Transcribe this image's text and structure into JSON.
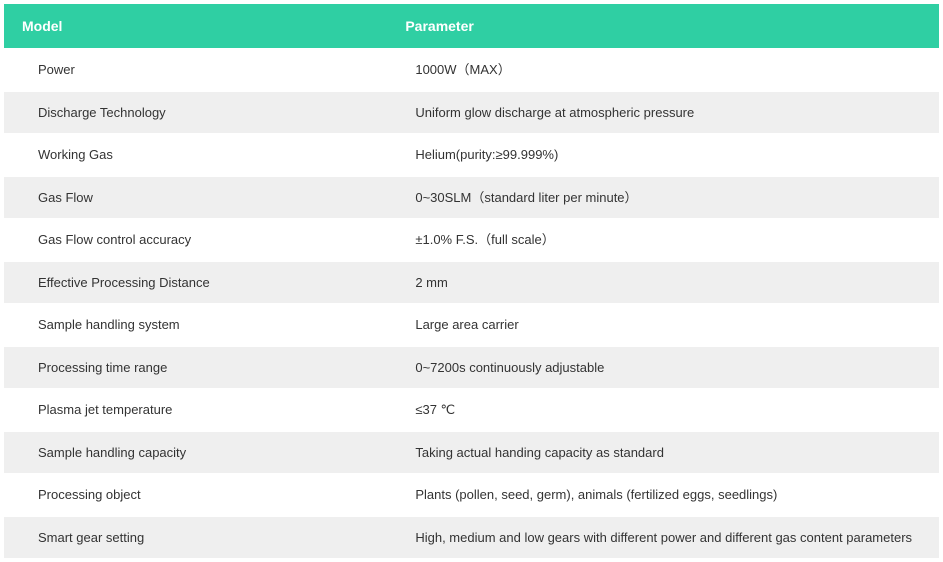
{
  "table": {
    "header_bg": "#2fcfa3",
    "header_color": "#ffffff",
    "row_odd_bg": "#ffffff",
    "row_even_bg": "#efefef",
    "text_color": "#333333",
    "columns": [
      "Model",
      "Parameter"
    ],
    "rows": [
      {
        "model": "Power",
        "parameter": "1000W（MAX）"
      },
      {
        "model": "Discharge Technology",
        "parameter": "Uniform glow discharge at atmospheric pressure"
      },
      {
        "model": "Working Gas",
        "parameter": "Helium(purity:≥99.999%)"
      },
      {
        "model": "Gas Flow",
        "parameter": "0~30SLM（standard liter per minute）"
      },
      {
        "model": "Gas Flow control accuracy",
        "parameter": "±1.0% F.S.（full scale）"
      },
      {
        "model": "Effective Processing Distance",
        "parameter": "2 mm"
      },
      {
        "model": "Sample handling system",
        "parameter": "Large area carrier"
      },
      {
        "model": "Processing time range",
        "parameter": "0~7200s continuously adjustable"
      },
      {
        "model": "Plasma jet temperature",
        "parameter": "≤37 ℃"
      },
      {
        "model": "Sample handling capacity",
        "parameter": "Taking actual handing capacity as standard"
      },
      {
        "model": "Processing object",
        "parameter": "Plants (pollen, seed, germ), animals (fertilized eggs, seedlings)"
      },
      {
        "model": "Smart gear setting",
        "parameter": "High, medium and low gears with different power and different gas content parameters"
      }
    ]
  }
}
